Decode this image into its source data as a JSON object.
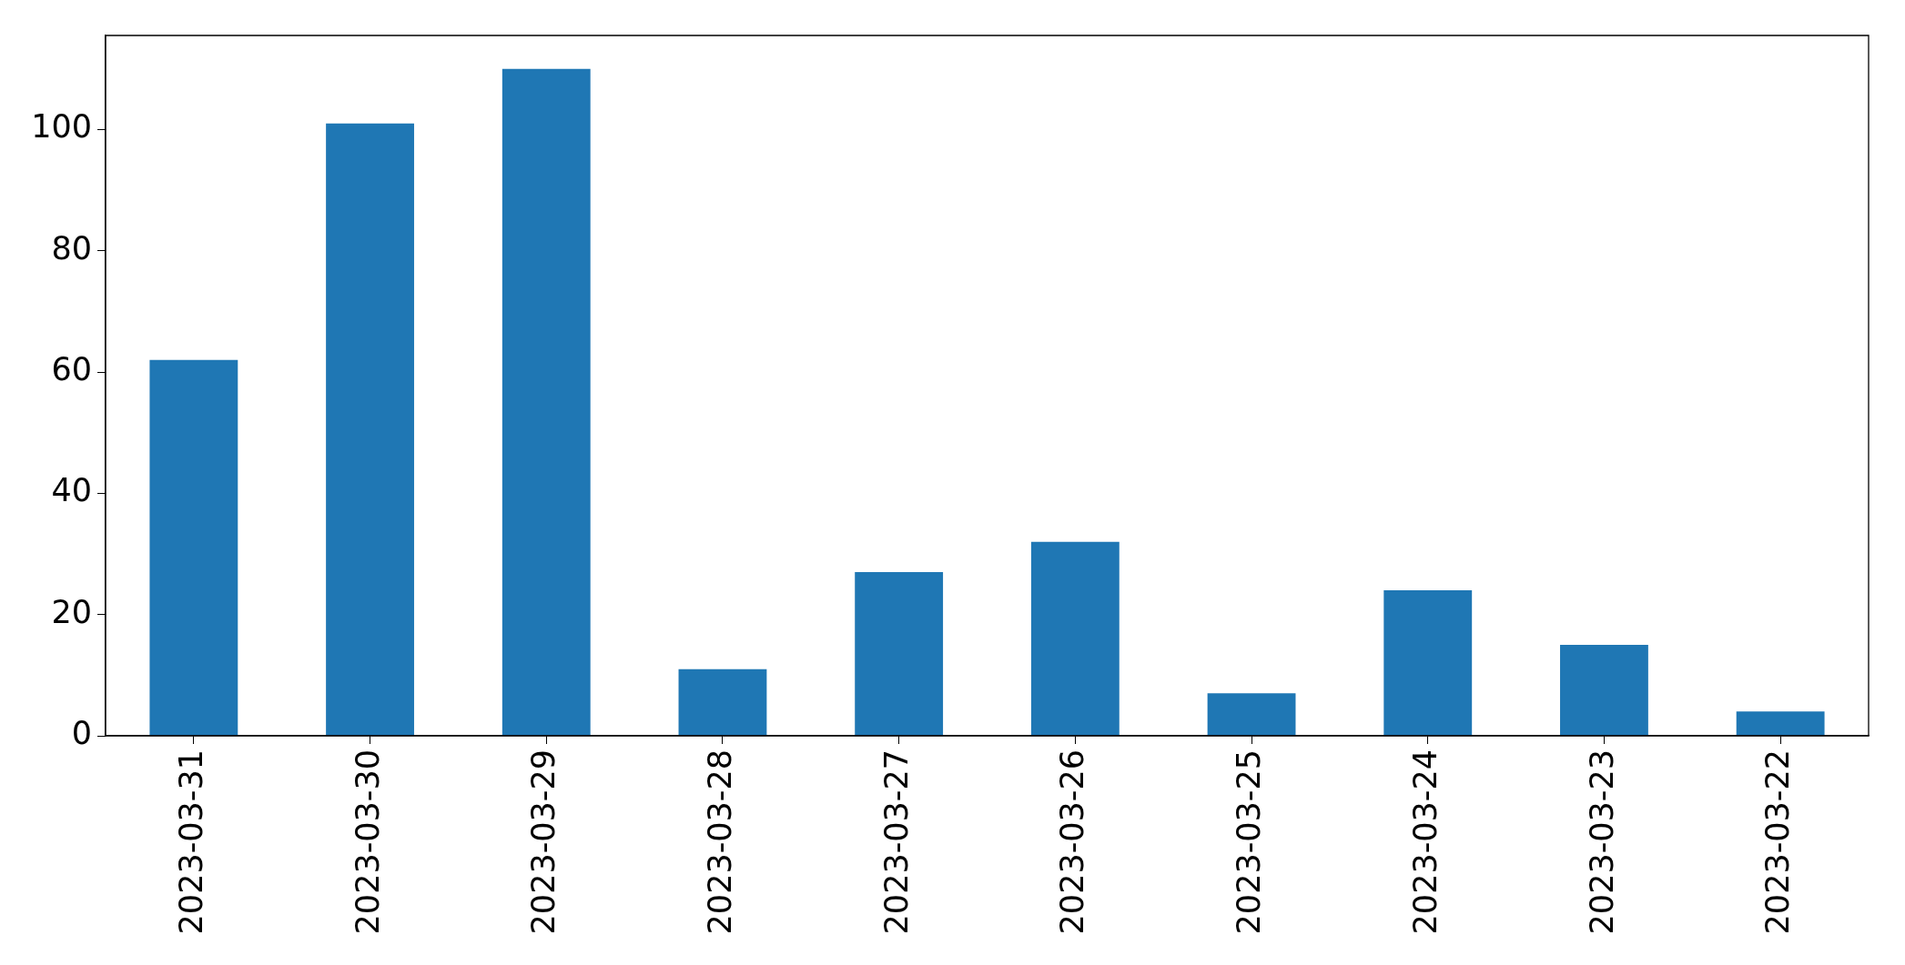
{
  "chart_data": {
    "type": "bar",
    "categories": [
      "2023-03-31",
      "2023-03-30",
      "2023-03-29",
      "2023-03-28",
      "2023-03-27",
      "2023-03-26",
      "2023-03-25",
      "2023-03-24",
      "2023-03-23",
      "2023-03-22"
    ],
    "values": [
      62,
      101,
      110,
      11,
      27,
      32,
      7,
      24,
      15,
      4
    ],
    "color": "#1f77b4",
    "ylim": [
      0,
      115.5
    ],
    "yticks": [
      0,
      20,
      40,
      60,
      80,
      100
    ]
  }
}
